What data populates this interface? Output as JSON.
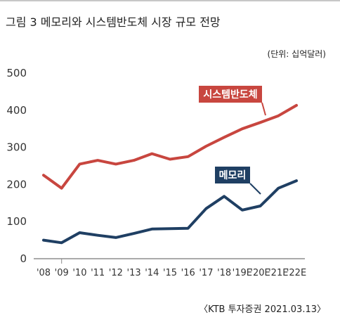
{
  "figure": {
    "title": "그림 3  메모리와 시스템반도체 시장 규모 전망",
    "unit": "(단위: 십억달러)",
    "source": "〈KTB 투자증권 2021.03.13〉"
  },
  "chart_data": {
    "type": "line",
    "categories": [
      "'08",
      "'09",
      "'10",
      "'11",
      "'12",
      "'13",
      "'14",
      "'15",
      "'16",
      "'17",
      "'18",
      "'19E",
      "'20E",
      "'21E",
      "'22E"
    ],
    "ylim": [
      0,
      500
    ],
    "yticks": [
      0,
      100,
      200,
      300,
      400,
      500
    ],
    "grid": false,
    "series": [
      {
        "name": "시스템반도체",
        "color": "#c8463f",
        "values": [
          225,
          190,
          255,
          265,
          255,
          265,
          283,
          268,
          275,
          303,
          327,
          350,
          367,
          385,
          413
        ]
      },
      {
        "name": "메모리",
        "color": "#1f3f63",
        "values": [
          50,
          43,
          70,
          63,
          57,
          68,
          80,
          81,
          82,
          135,
          168,
          131,
          142,
          190,
          210
        ]
      }
    ]
  }
}
